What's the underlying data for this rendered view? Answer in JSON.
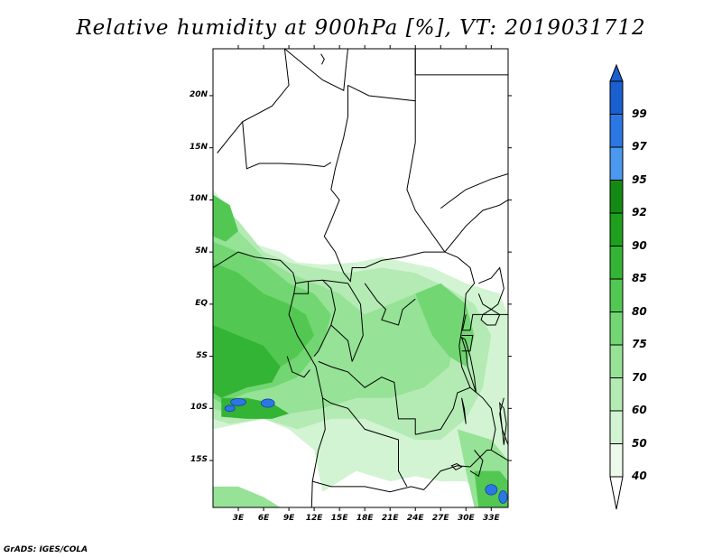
{
  "title": "Relative humidity at 900hPa [%], VT: 2019031712",
  "credit": "GrADS: IGES/COLA",
  "map": {
    "lon_range": [
      0,
      35
    ],
    "lat_range": [
      -19.5,
      24.5
    ],
    "lat_ticks": [
      {
        "value": 20,
        "label": "20N"
      },
      {
        "value": 15,
        "label": "15N"
      },
      {
        "value": 10,
        "label": "10N"
      },
      {
        "value": 5,
        "label": "5N"
      },
      {
        "value": 0,
        "label": "EQ"
      },
      {
        "value": -5,
        "label": "5S"
      },
      {
        "value": -10,
        "label": "10S"
      },
      {
        "value": -15,
        "label": "15S"
      }
    ],
    "lon_ticks": [
      {
        "value": 3,
        "label": "3E"
      },
      {
        "value": 6,
        "label": "6E"
      },
      {
        "value": 9,
        "label": "9E"
      },
      {
        "value": 12,
        "label": "12E"
      },
      {
        "value": 15,
        "label": "15E"
      },
      {
        "value": 18,
        "label": "18E"
      },
      {
        "value": 21,
        "label": "21E"
      },
      {
        "value": 24,
        "label": "24E"
      },
      {
        "value": 27,
        "label": "27E"
      },
      {
        "value": 30,
        "label": "30E"
      },
      {
        "value": 33,
        "label": "33E"
      }
    ]
  },
  "colorbar": {
    "levels": [
      {
        "label": "99",
        "color": "#1a5fd0"
      },
      {
        "label": "97",
        "color": "#2b78e4"
      },
      {
        "label": "95",
        "color": "#4a98f0"
      },
      {
        "label": "92",
        "color": "#148a14"
      },
      {
        "label": "90",
        "color": "#1ea01e"
      },
      {
        "label": "85",
        "color": "#34b434"
      },
      {
        "label": "80",
        "color": "#52c852"
      },
      {
        "label": "75",
        "color": "#72d672"
      },
      {
        "label": "70",
        "color": "#96e296"
      },
      {
        "label": "60",
        "color": "#b4eab4"
      },
      {
        "label": "50",
        "color": "#d2f4d2"
      },
      {
        "label": "40",
        "color": "#ecfaec"
      }
    ],
    "top_color": "#1a5fd0",
    "bottom_color": "#ffffff"
  }
}
